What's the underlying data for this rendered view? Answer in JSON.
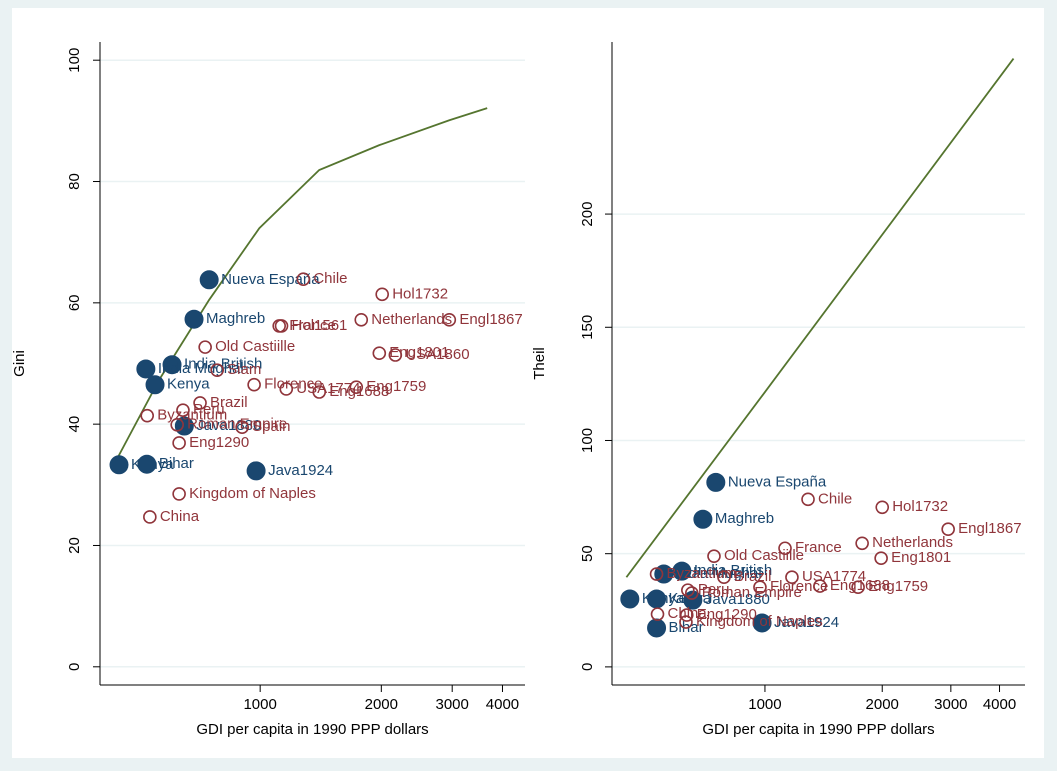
{
  "chart_data": [
    {
      "type": "scatter",
      "xlabel": "GDI per capita in 1990 PPP dollars",
      "ylabel": "Gini",
      "log_x": true,
      "grid": true,
      "xlim": [
        400,
        4550
      ],
      "ylim": [
        -3,
        103
      ],
      "xticks": [
        1000,
        2000,
        3000,
        4000
      ],
      "yticks": [
        0,
        20,
        40,
        60,
        80,
        100
      ],
      "series": [
        {
          "marker": "filled",
          "color": "#1a476f",
          "labels": [
            "Nueva España",
            "Maghreb",
            "India British",
            "India Mughal",
            "Kenya",
            "Kenya",
            "Bihar",
            "Java1924",
            "Java1880"
          ],
          "x": [
            747,
            685,
            604,
            520,
            548,
            446,
            523,
            977,
            648
          ],
          "y": [
            63.8,
            57.3,
            49.8,
            49.1,
            46.5,
            33.3,
            33.4,
            32.3,
            39.7
          ]
        },
        {
          "marker": "hollow",
          "color": "#90353b",
          "labels": [
            "Chile",
            "Hol1732",
            "France",
            "Hol1561",
            "Netherlands",
            "Engl1867",
            "Old Castiille",
            "Eng1801",
            "USA1860",
            "Siam",
            "Florence",
            "USA1774",
            "Eng1688",
            "Eng1759",
            "Brazil",
            "Peru",
            "Byzantium",
            "Roman Empire",
            "Spain",
            "Eng1290",
            "Kingdom of Naples",
            "China"
          ],
          "x": [
            1280,
            2010,
            1115,
            1130,
            1783,
            2951,
            730,
            1977,
            2167,
            782,
            966,
            1161,
            1402,
            1733,
            709,
            643,
            524,
            622,
            902,
            629,
            629,
            532
          ],
          "y": [
            63.9,
            61.4,
            56.2,
            56.2,
            57.2,
            57.2,
            52.7,
            51.7,
            51.4,
            48.9,
            46.5,
            45.8,
            45.3,
            46.1,
            43.5,
            42.3,
            41.4,
            39.9,
            39.5,
            36.9,
            28.5,
            24.7
          ]
        }
      ],
      "fit": {
        "color": "#55752f",
        "x": [
          433,
          561,
          747,
          995,
          1402,
          1977,
          2951,
          3665
        ],
        "y": [
          33.3,
          47.3,
          60.5,
          72.3,
          81.9,
          86.0,
          90.1,
          92.1
        ]
      }
    },
    {
      "type": "scatter",
      "xlabel": "GDI per capita in 1990 PPP dollars",
      "ylabel": "Theil",
      "log_x": true,
      "grid": true,
      "xlim": [
        405,
        4650
      ],
      "ylim": [
        -8,
        276
      ],
      "xticks": [
        1000,
        2000,
        3000,
        4000
      ],
      "yticks": [
        0,
        50,
        100,
        150,
        200
      ],
      "series": [
        {
          "marker": "filled",
          "color": "#1a476f",
          "labels": [
            "Nueva España",
            "Maghreb",
            "India British",
            "India Mughal",
            "Kenya",
            "Kenya",
            "Java1880",
            "Bihar",
            "Java1924"
          ],
          "x": [
            748,
            693,
            612,
            550,
            450,
            527,
            653,
            527,
            983
          ],
          "y": [
            81.5,
            65.2,
            42.3,
            41.0,
            30.0,
            30.0,
            29.5,
            17.2,
            19.4
          ]
        },
        {
          "marker": "hollow",
          "color": "#90353b",
          "labels": [
            "Chile",
            "Hol1732",
            "Engl1867",
            "Netherlands",
            "Eng1801",
            "France",
            "Old Castiille",
            "USA1774",
            "Eng1688",
            "Eng1759",
            "Florence",
            "Byzantium",
            "Peru",
            "Roman Empire",
            "Brazil",
            "Eng1290",
            "Kingdom of Naples",
            "China"
          ],
          "x": [
            1290,
            2000,
            2953,
            1776,
            1987,
            1126,
            740,
            1173,
            1384,
            1734,
            971,
            527,
            634,
            649,
            785,
            630,
            627,
            530
          ],
          "y": [
            74.0,
            70.5,
            60.8,
            54.6,
            48.0,
            52.4,
            48.9,
            39.6,
            35.7,
            35.2,
            35.2,
            41.0,
            33.9,
            32.6,
            39.6,
            22.9,
            19.8,
            23.3
          ]
        }
      ],
      "fit": {
        "color": "#55752f",
        "x": [
          441,
          1000,
          4345
        ],
        "y": [
          39.6,
          121.4,
          268.7
        ]
      }
    }
  ]
}
